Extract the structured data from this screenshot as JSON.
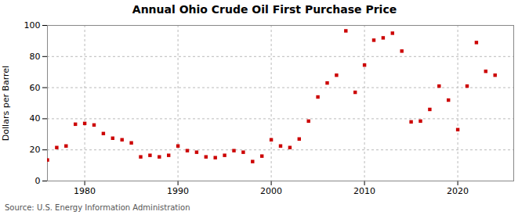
{
  "chart_data": {
    "type": "scatter",
    "title": "Annual Ohio Crude Oil First Purchase Price",
    "ylabel": "Dollars per Barrel",
    "source": "Source: U.S. Energy Information Administration",
    "x": [
      1976,
      1977,
      1978,
      1979,
      1980,
      1981,
      1982,
      1983,
      1984,
      1985,
      1986,
      1987,
      1988,
      1989,
      1990,
      1991,
      1992,
      1993,
      1994,
      1995,
      1996,
      1997,
      1998,
      1999,
      2000,
      2001,
      2002,
      2003,
      2004,
      2005,
      2006,
      2007,
      2008,
      2009,
      2010,
      2011,
      2012,
      2013,
      2014,
      2015,
      2016,
      2017,
      2018,
      2019,
      2020,
      2021,
      2022,
      2023,
      2024
    ],
    "values": [
      13.5,
      21.5,
      22.5,
      36.5,
      37.0,
      36.0,
      30.5,
      27.5,
      26.5,
      24.5,
      15.5,
      16.5,
      15.5,
      16.5,
      22.5,
      19.5,
      18.5,
      15.5,
      15.0,
      16.5,
      19.5,
      18.5,
      12.5,
      16.0,
      26.5,
      22.5,
      21.5,
      27.0,
      38.5,
      54.0,
      63.0,
      68.0,
      96.5,
      57.0,
      74.5,
      90.5,
      92.0,
      95.0,
      83.5,
      38.0,
      38.5,
      46.0,
      61.0,
      52.0,
      33.0,
      61.0,
      89.0,
      70.5,
      68.0
    ],
    "color": "#cc0000",
    "marker": "square",
    "xlim": [
      1976,
      2026
    ],
    "ylim": [
      0,
      100
    ],
    "xticks": [
      1980,
      1990,
      2000,
      2010,
      2020
    ],
    "yticks": [
      0,
      20,
      40,
      60,
      80,
      100
    ],
    "grid": true
  }
}
